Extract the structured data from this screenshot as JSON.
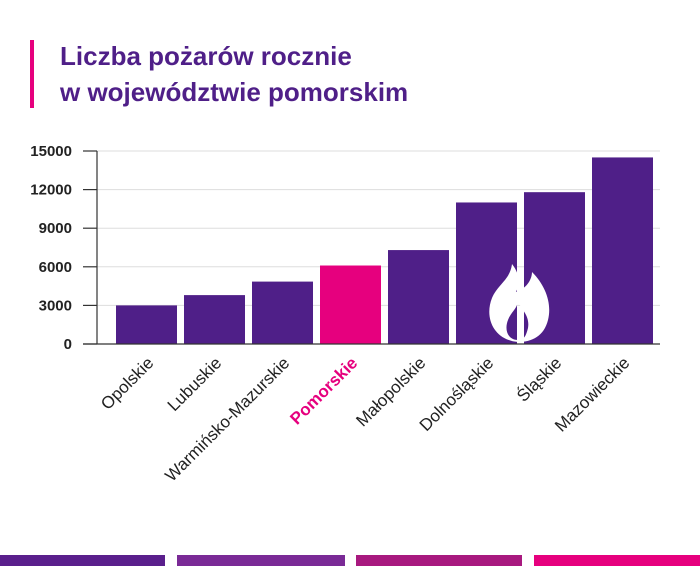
{
  "title": {
    "line1": "Liczba pożarów rocznie",
    "line2": "w województwie pomorskim"
  },
  "colors": {
    "title": "#4f1f88",
    "accent": "#e6007e",
    "bar": "#4f1f88",
    "highlight": "#e6007e",
    "axis": "#333333",
    "grid": "#dddddd",
    "footer": [
      "#5a1f8c",
      "#7a2a96",
      "#a8197f",
      "#e6007e"
    ]
  },
  "chart_data": {
    "type": "bar",
    "title": "Liczba pożarów rocznie w województwie pomorskim",
    "xlabel": "",
    "ylabel": "",
    "categories": [
      "Opolskie",
      "Lubuskie",
      "Warmińsko-Mazurskie",
      "Pomorskie",
      "Małopolskie",
      "Dolnośląskie",
      "Śląskie",
      "Mazowieckie"
    ],
    "values": [
      3000,
      3800,
      4850,
      6100,
      7300,
      11000,
      11800,
      14500
    ],
    "highlight_category": "Pomorskie",
    "ylim": [
      0,
      15000
    ],
    "yticks": [
      0,
      3000,
      6000,
      9000,
      12000,
      15000
    ],
    "grid": true,
    "icon": "flame-icon"
  }
}
